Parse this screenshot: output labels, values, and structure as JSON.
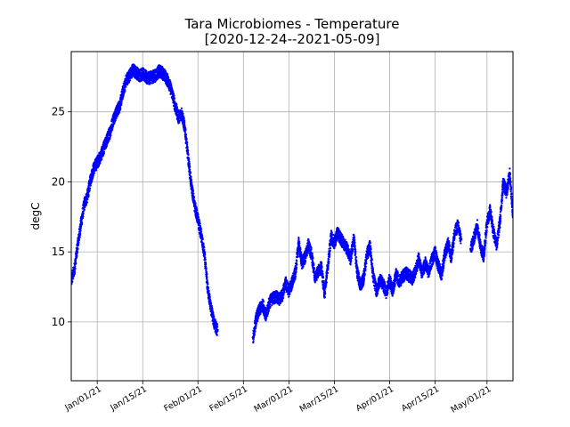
{
  "chart_data": {
    "type": "scatter",
    "title": "Tara Microbiomes - Temperature",
    "subtitle": "[2020-12-24--2021-05-09]",
    "xlabel": "",
    "ylabel": "degC",
    "xlim": [
      "2020-12-24",
      "2021-05-09"
    ],
    "ylim": [
      5.8,
      29.3
    ],
    "grid": true,
    "x_ticks": [
      {
        "date": "2021-01-01",
        "label": "Jan/01/21"
      },
      {
        "date": "2021-01-15",
        "label": "Jan/15/21"
      },
      {
        "date": "2021-02-01",
        "label": "Feb/01/21"
      },
      {
        "date": "2021-02-15",
        "label": "Feb/15/21"
      },
      {
        "date": "2021-03-01",
        "label": "Mar/01/21"
      },
      {
        "date": "2021-03-15",
        "label": "Mar/15/21"
      },
      {
        "date": "2021-04-01",
        "label": "Apr/01/21"
      },
      {
        "date": "2021-04-15",
        "label": "Apr/15/21"
      },
      {
        "date": "2021-05-01",
        "label": "May/01/21"
      }
    ],
    "y_ticks": [
      {
        "value": 10,
        "label": "10"
      },
      {
        "value": 15,
        "label": "15"
      },
      {
        "value": 20,
        "label": "20"
      },
      {
        "value": 25,
        "label": "25"
      }
    ],
    "series": [
      {
        "color": "#0000ff",
        "segments": [
          [
            [
              "2020-12-24",
              12.9
            ],
            [
              "2020-12-25",
              13.8
            ],
            [
              "2020-12-26",
              15.5
            ],
            [
              "2020-12-27",
              17.0
            ],
            [
              "2020-12-28",
              18.4
            ],
            [
              "2020-12-29",
              19.0
            ],
            [
              "2020-12-30",
              20.2
            ],
            [
              "2020-12-31",
              21.0
            ],
            [
              "2021-01-01",
              21.4
            ],
            [
              "2021-01-02",
              21.8
            ],
            [
              "2021-01-03",
              22.4
            ],
            [
              "2021-01-04",
              23.0
            ],
            [
              "2021-01-05",
              23.6
            ],
            [
              "2021-01-06",
              24.5
            ],
            [
              "2021-01-07",
              25.0
            ],
            [
              "2021-01-08",
              25.5
            ],
            [
              "2021-01-09",
              26.5
            ],
            [
              "2021-01-10",
              27.3
            ],
            [
              "2021-01-11",
              27.6
            ],
            [
              "2021-01-12",
              28.0
            ],
            [
              "2021-01-13",
              27.8
            ],
            [
              "2021-01-14",
              27.6
            ],
            [
              "2021-01-15",
              27.7
            ],
            [
              "2021-01-16",
              27.5
            ],
            [
              "2021-01-17",
              27.4
            ],
            [
              "2021-01-18",
              27.5
            ],
            [
              "2021-01-19",
              27.6
            ],
            [
              "2021-01-20",
              27.9
            ],
            [
              "2021-01-21",
              27.8
            ],
            [
              "2021-01-22",
              27.5
            ],
            [
              "2021-01-23",
              27.1
            ],
            [
              "2021-01-24",
              26.4
            ],
            [
              "2021-01-25",
              25.4
            ],
            [
              "2021-01-26",
              24.6
            ],
            [
              "2021-01-27",
              24.9
            ],
            [
              "2021-01-28",
              23.8
            ],
            [
              "2021-01-29",
              21.7
            ],
            [
              "2021-01-30",
              19.7
            ],
            [
              "2021-01-31",
              18.3
            ],
            [
              "2021-02-01",
              17.3
            ],
            [
              "2021-02-02",
              16.2
            ],
            [
              "2021-02-03",
              14.8
            ],
            [
              "2021-02-04",
              12.4
            ],
            [
              "2021-02-05",
              11.0
            ],
            [
              "2021-02-06",
              9.9
            ],
            [
              "2021-02-07",
              9.4
            ]
          ],
          [
            [
              "2021-02-18",
              8.9
            ],
            [
              "2021-02-19",
              10.3
            ],
            [
              "2021-02-20",
              10.9
            ],
            [
              "2021-02-21",
              11.2
            ],
            [
              "2021-02-22",
              10.4
            ],
            [
              "2021-02-23",
              11.4
            ],
            [
              "2021-02-24",
              11.7
            ],
            [
              "2021-02-25",
              11.8
            ],
            [
              "2021-02-26",
              11.6
            ],
            [
              "2021-02-27",
              11.9
            ],
            [
              "2021-02-28",
              12.8
            ],
            [
              "2021-03-01",
              12.2
            ],
            [
              "2021-03-02",
              12.8
            ],
            [
              "2021-03-03",
              13.5
            ],
            [
              "2021-03-04",
              15.6
            ],
            [
              "2021-03-05",
              14.2
            ],
            [
              "2021-03-06",
              14.6
            ],
            [
              "2021-03-07",
              15.5
            ],
            [
              "2021-03-08",
              14.8
            ],
            [
              "2021-03-09",
              13.2
            ],
            [
              "2021-03-10",
              13.6
            ],
            [
              "2021-03-11",
              13.9
            ],
            [
              "2021-03-12",
              12.0
            ],
            [
              "2021-03-13",
              14.0
            ],
            [
              "2021-03-14",
              16.1
            ],
            [
              "2021-03-15",
              15.6
            ],
            [
              "2021-03-16",
              16.4
            ],
            [
              "2021-03-17",
              15.9
            ],
            [
              "2021-03-18",
              15.6
            ],
            [
              "2021-03-19",
              15.2
            ],
            [
              "2021-03-20",
              14.5
            ],
            [
              "2021-03-21",
              16.0
            ],
            [
              "2021-03-22",
              13.6
            ],
            [
              "2021-03-23",
              12.6
            ],
            [
              "2021-03-24",
              13.1
            ],
            [
              "2021-03-25",
              14.8
            ],
            [
              "2021-03-26",
              15.4
            ],
            [
              "2021-03-27",
              13.2
            ],
            [
              "2021-03-28",
              12.2
            ],
            [
              "2021-03-29",
              13.0
            ],
            [
              "2021-03-30",
              12.7
            ],
            [
              "2021-03-31",
              12.1
            ],
            [
              "2021-04-01",
              13.0
            ],
            [
              "2021-04-02",
              12.2
            ],
            [
              "2021-04-03",
              13.4
            ],
            [
              "2021-04-04",
              12.9
            ],
            [
              "2021-04-05",
              13.2
            ],
            [
              "2021-04-06",
              13.5
            ],
            [
              "2021-04-07",
              13.3
            ],
            [
              "2021-04-08",
              13.1
            ],
            [
              "2021-04-09",
              13.6
            ],
            [
              "2021-04-10",
              14.6
            ],
            [
              "2021-04-11",
              13.4
            ],
            [
              "2021-04-12",
              14.2
            ],
            [
              "2021-04-13",
              13.5
            ],
            [
              "2021-04-14",
              14.4
            ],
            [
              "2021-04-15",
              15.0
            ],
            [
              "2021-04-16",
              14.0
            ],
            [
              "2021-04-17",
              13.4
            ],
            [
              "2021-04-18",
              14.8
            ],
            [
              "2021-04-19",
              15.6
            ],
            [
              "2021-04-20",
              14.6
            ],
            [
              "2021-04-21",
              16.3
            ],
            [
              "2021-04-22",
              16.9
            ],
            [
              "2021-04-23",
              15.9
            ]
          ],
          [
            [
              "2021-04-26",
              15.2
            ],
            [
              "2021-04-27",
              16.0
            ],
            [
              "2021-04-28",
              16.9
            ],
            [
              "2021-04-29",
              15.4
            ],
            [
              "2021-04-30",
              14.7
            ],
            [
              "2021-05-01",
              17.1
            ],
            [
              "2021-05-02",
              18.0
            ],
            [
              "2021-05-03",
              16.4
            ],
            [
              "2021-05-04",
              15.5
            ],
            [
              "2021-05-05",
              17.2
            ],
            [
              "2021-05-06",
              20.0
            ],
            [
              "2021-05-07",
              19.2
            ],
            [
              "2021-05-08",
              20.6
            ],
            [
              "2021-05-09",
              17.6
            ]
          ]
        ]
      }
    ]
  }
}
